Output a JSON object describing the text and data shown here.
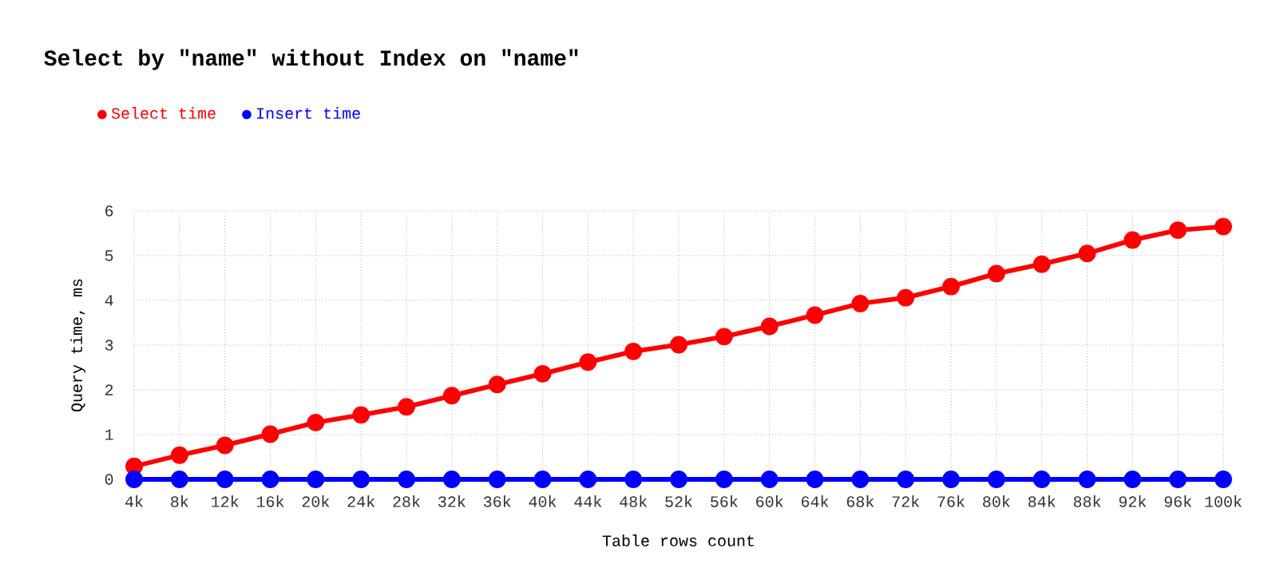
{
  "chart_data": {
    "type": "line",
    "title": "Select by \"name\" without Index on \"name\"",
    "xlabel": "Table rows count",
    "ylabel": "Query time, ms",
    "categories": [
      "4k",
      "8k",
      "12k",
      "16k",
      "20k",
      "24k",
      "28k",
      "32k",
      "36k",
      "40k",
      "44k",
      "48k",
      "52k",
      "56k",
      "60k",
      "64k",
      "68k",
      "72k",
      "76k",
      "80k",
      "84k",
      "88k",
      "92k",
      "96k",
      "100k"
    ],
    "series": [
      {
        "name": "Select time",
        "color": "#ff0000",
        "values": [
          0.29,
          0.54,
          0.76,
          1.01,
          1.27,
          1.44,
          1.62,
          1.87,
          2.12,
          2.36,
          2.62,
          2.86,
          3.01,
          3.19,
          3.42,
          3.67,
          3.93,
          4.06,
          4.31,
          4.6,
          4.81,
          5.05,
          5.35,
          5.57,
          5.65
        ]
      },
      {
        "name": "Insert time",
        "color": "#0000ff",
        "values": [
          0,
          0,
          0,
          0,
          0,
          0,
          0,
          0,
          0,
          0,
          0,
          0,
          0,
          0,
          0,
          0,
          0,
          0,
          0,
          0,
          0,
          0,
          0,
          0,
          0
        ]
      }
    ],
    "ylim": [
      0,
      6
    ],
    "yticks": [
      0,
      1,
      2,
      3,
      4,
      5,
      6
    ],
    "grid": true,
    "legend": "top left",
    "marker": "circle"
  }
}
